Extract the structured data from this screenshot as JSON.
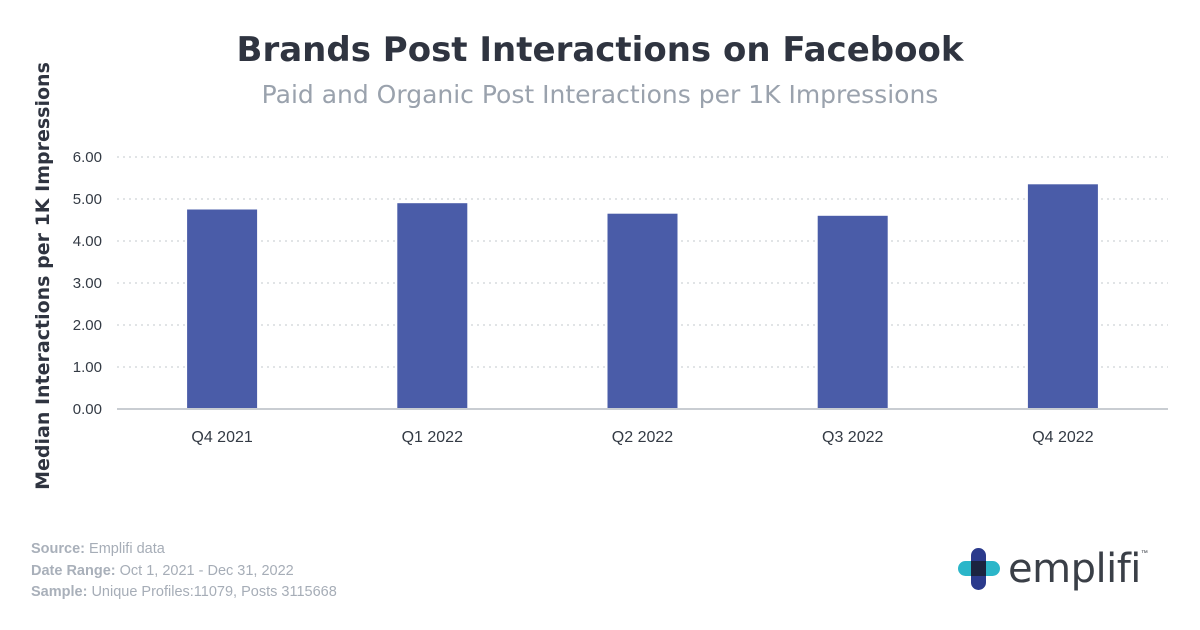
{
  "header": {
    "title": "Brands Post Interactions on Facebook",
    "subtitle": "Paid and Organic Post Interactions per 1K Impressions"
  },
  "chart_data": {
    "type": "bar",
    "title": "Brands Post Interactions on Facebook",
    "subtitle": "Paid and Organic Post Interactions per 1K Impressions",
    "xlabel": "",
    "ylabel": "Median Interactions per 1K Impressions",
    "categories": [
      "Q4 2021",
      "Q1 2022",
      "Q2 2022",
      "Q3 2022",
      "Q4 2022"
    ],
    "values": [
      4.75,
      4.9,
      4.65,
      4.6,
      5.35
    ],
    "ylim": [
      0,
      6
    ],
    "yticks": [
      "0.00",
      "1.00",
      "2.00",
      "3.00",
      "4.00",
      "5.00",
      "6.00"
    ],
    "grid": true,
    "bar_color": "#4a5ca8"
  },
  "footer": {
    "source_label": "Source:",
    "source_value": "Emplifi data",
    "date_label": "Date Range:",
    "date_value": "Oct 1, 2021 - Dec 31, 2022",
    "sample_label": "Sample:",
    "sample_value": "Unique Profiles:11079, Posts 3115668"
  },
  "logo": {
    "text": "emplifi",
    "trademark": "™",
    "colors": [
      "#2bb6c9",
      "#2b3a8c",
      "#1b2440"
    ]
  }
}
